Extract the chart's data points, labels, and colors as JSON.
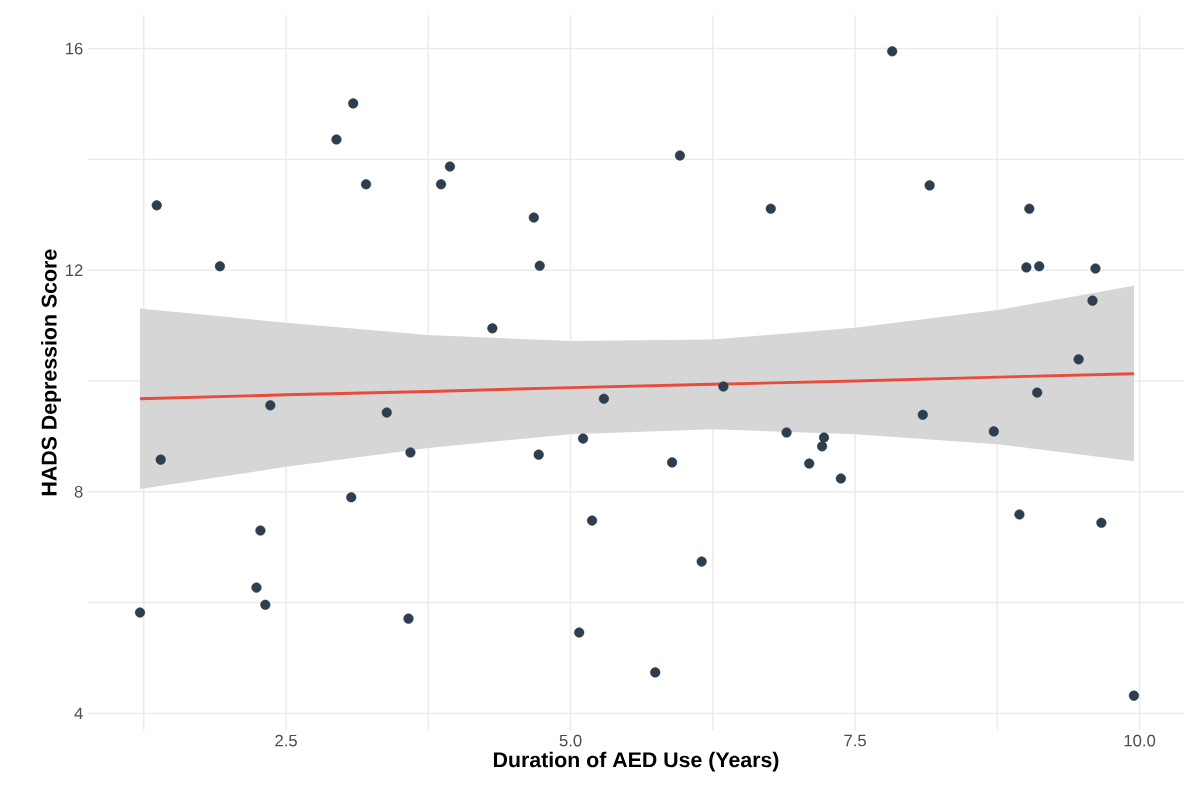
{
  "chart_data": {
    "type": "scatter",
    "xlabel": "Duration of AED Use (Years)",
    "ylabel": "HADS Depression Score",
    "xlim": [
      0.76,
      10.39
    ],
    "ylim": [
      3.7,
      16.6
    ],
    "xticks": [
      {
        "value": 1.25,
        "label": null
      },
      2.5,
      {
        "value": 3.75,
        "label": null
      },
      {
        "value": 5,
        "label": "5.0"
      },
      {
        "value": 6.25,
        "label": null
      },
      7.5,
      {
        "value": 8.75,
        "label": null
      },
      {
        "value": 10,
        "label": "10.0"
      }
    ],
    "yticks": [
      4,
      {
        "value": 6,
        "label": null
      },
      8,
      {
        "value": 10,
        "label": null
      },
      12,
      {
        "value": 14,
        "label": null
      },
      16
    ],
    "grid": true,
    "series": [
      {
        "color": "#2c3e50",
        "x": [
          1.217,
          1.364,
          1.399,
          1.919,
          2.24,
          2.275,
          2.318,
          2.362,
          2.943,
          3.09,
          3.073,
          3.203,
          3.385,
          3.576,
          3.593,
          3.862,
          3.94,
          4.313,
          4.677,
          4.729,
          4.72,
          5.076,
          5.11,
          5.189,
          5.293,
          5.744,
          5.892,
          5.961,
          6.152,
          6.343,
          6.759,
          6.898,
          7.097,
          7.21,
          7.227,
          7.375,
          7.826,
          8.095,
          8.155,
          8.719,
          8.944,
          9.005,
          9.031,
          9.118,
          9.1,
          9.464,
          9.586,
          9.612,
          9.664,
          9.95
        ],
        "values": [
          5.82,
          13.17,
          8.58,
          12.07,
          6.27,
          7.3,
          5.96,
          9.56,
          14.36,
          15.01,
          7.9,
          13.55,
          9.43,
          5.71,
          8.71,
          13.55,
          13.87,
          10.95,
          12.95,
          12.08,
          8.67,
          5.46,
          8.96,
          7.48,
          9.68,
          4.74,
          8.53,
          14.07,
          6.74,
          9.9,
          13.11,
          9.07,
          8.51,
          8.82,
          8.98,
          8.24,
          15.95,
          9.39,
          13.53,
          9.09,
          7.59,
          12.05,
          13.11,
          12.07,
          9.79,
          10.39,
          11.45,
          12.03,
          7.44,
          4.32
        ]
      },
      {
        "type": "line",
        "color": "#e74c3c",
        "x": [
          1.217,
          2.5,
          3.75,
          5.0,
          6.25,
          7.5,
          8.75,
          9.95
        ],
        "values": [
          9.68,
          9.75,
          9.81,
          9.88,
          9.94,
          10.0,
          10.07,
          10.13
        ],
        "lower": [
          8.05,
          8.45,
          8.79,
          9.04,
          9.13,
          9.04,
          8.86,
          8.55
        ],
        "upper": [
          11.31,
          11.05,
          10.83,
          10.72,
          10.75,
          10.96,
          11.28,
          11.72
        ]
      }
    ]
  }
}
